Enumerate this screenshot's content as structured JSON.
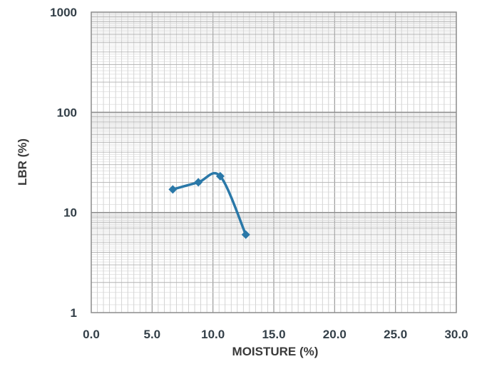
{
  "chart_data": {
    "type": "line",
    "xlabel": "MOISTURE (%)",
    "ylabel": "LBR (%)",
    "xlim": [
      0,
      30
    ],
    "ylim": [
      1,
      1000
    ],
    "y_scale": "log",
    "grid": true,
    "x_ticks": [
      "0.0",
      "5.0",
      "10.0",
      "15.0",
      "20.0",
      "25.0",
      "30.0"
    ],
    "y_ticks": [
      "1",
      "10",
      "100",
      "1000"
    ],
    "series": [
      {
        "color": "#2a78a8",
        "x": [
          6.7,
          8.8,
          10.6,
          12.7
        ],
        "y": [
          17,
          20,
          23,
          6
        ]
      }
    ]
  }
}
